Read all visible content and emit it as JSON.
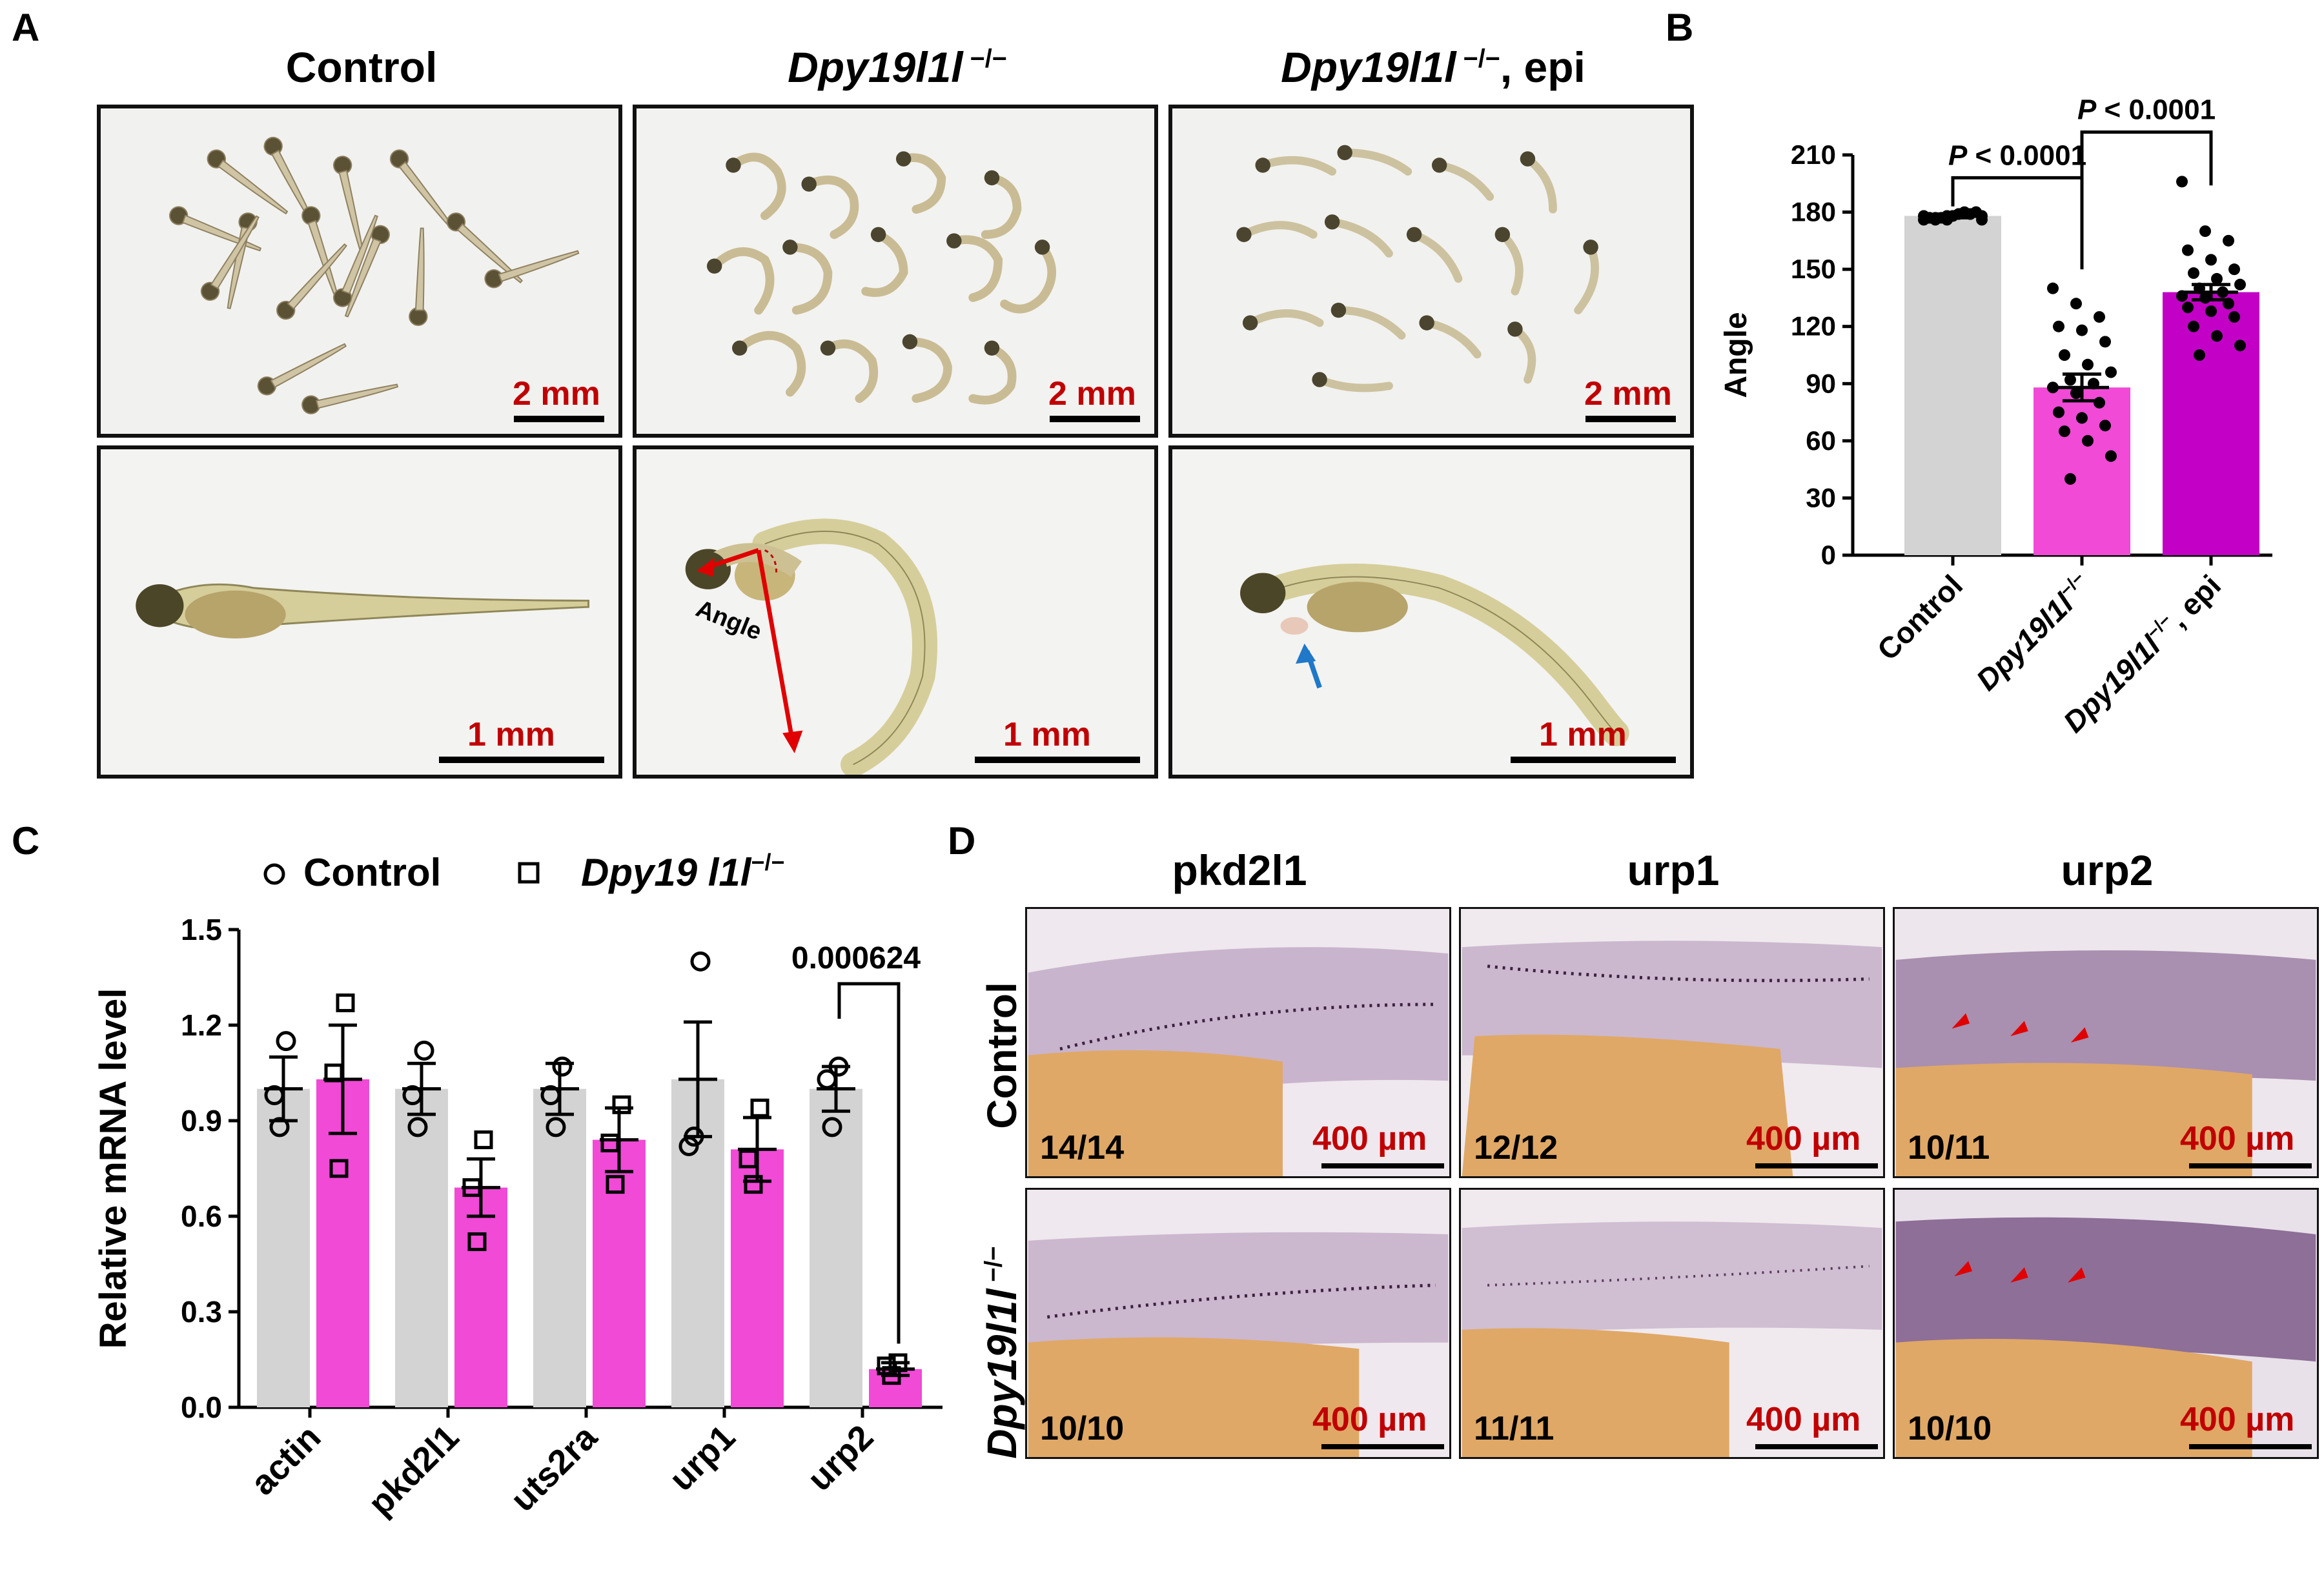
{
  "panel_labels": {
    "a": "A",
    "b": "B",
    "c": "C",
    "d": "D"
  },
  "panelA": {
    "columns": [
      {
        "prefix": "",
        "gene": "",
        "suffix": "Control"
      },
      {
        "prefix": "",
        "gene": "Dpy19l1l",
        "sup": " −/−",
        "suffix": ""
      },
      {
        "prefix": "",
        "gene": "Dpy19l1l",
        "sup": " −/−",
        "suffix": ", epi"
      }
    ],
    "scale_top": "2 mm",
    "scale_bottom": "1 mm",
    "angle_label": "Angle"
  },
  "panelD": {
    "columns": [
      "pkd2l1",
      "urp1",
      "urp2"
    ],
    "rows": [
      {
        "label": "Control"
      },
      {
        "label_gene": "Dpy19l1l",
        "label_sup": " −/−"
      }
    ],
    "counts": [
      [
        "14/14",
        "12/12",
        "10/11"
      ],
      [
        "10/10",
        "11/11",
        "10/10"
      ]
    ],
    "scale": "400 µm"
  },
  "chart_data": [
    {
      "type": "bar",
      "panel": "B",
      "ylabel": "Angle",
      "ylim": [
        0,
        210
      ],
      "yticks": [
        "0",
        "30",
        "60",
        "90",
        "120",
        "150",
        "180",
        "210"
      ],
      "categories": [
        "Control",
        "Dpy19l1l −/−",
        "Dpy19l1l −/−, epi"
      ],
      "category_parts": [
        {
          "gene": "",
          "sup": "",
          "text": "Control"
        },
        {
          "gene": "Dpy19l1l",
          "sup": "−/−",
          "text": ""
        },
        {
          "gene": "Dpy19l1l",
          "sup": "−/−",
          "text": ", epi"
        }
      ],
      "values": [
        178,
        88,
        138
      ],
      "sem": [
        1,
        7,
        4
      ],
      "colors": [
        "#d3d3d3",
        "#f04ad6",
        "#c200c6"
      ],
      "points": [
        [
          176,
          178,
          179,
          177,
          178,
          180,
          176,
          179,
          178,
          177,
          180,
          178,
          176,
          179,
          177,
          178,
          180,
          177,
          179,
          176
        ],
        [
          140,
          132,
          125,
          120,
          118,
          112,
          105,
          100,
          96,
          92,
          90,
          88,
          85,
          80,
          75,
          72,
          68,
          65,
          60,
          52,
          40
        ],
        [
          196,
          170,
          165,
          160,
          155,
          150,
          148,
          145,
          142,
          140,
          138,
          136,
          135,
          132,
          130,
          128,
          125,
          120,
          115,
          110,
          105
        ]
      ],
      "comparisons": [
        {
          "label_p": "P",
          "label_rest": " < 0.0001",
          "from": 0,
          "to": 1
        },
        {
          "label_p": "P",
          "label_rest": " < 0.0001",
          "from": 1,
          "to": 2
        }
      ]
    },
    {
      "type": "bar",
      "panel": "C",
      "ylabel": "Relative mRNA level",
      "ylim": [
        0,
        1.5
      ],
      "yticks": [
        "0.0",
        "0.3",
        "0.6",
        "0.9",
        "1.2",
        "1.5"
      ],
      "categories": [
        "actin",
        "pkd2l1",
        "uts2ra",
        "urp1",
        "urp2"
      ],
      "legend": [
        {
          "marker": "circle",
          "text": "Control"
        },
        {
          "marker": "square",
          "gene": "Dpy19 l1l",
          "sup": "−/−"
        }
      ],
      "series": [
        {
          "name": "Control",
          "values": [
            1.0,
            1.0,
            1.0,
            1.03,
            1.0
          ],
          "sem": [
            0.1,
            0.08,
            0.08,
            0.18,
            0.07
          ],
          "points": [
            [
              1.15,
              0.98,
              0.88
            ],
            [
              1.12,
              0.98,
              0.88
            ],
            [
              1.07,
              0.98,
              0.88
            ],
            [
              1.4,
              0.82,
              0.85
            ],
            [
              1.07,
              1.03,
              0.88
            ]
          ],
          "color": "#d3d3d3"
        },
        {
          "name": "Dpy19 l1l −/−",
          "values": [
            1.03,
            0.69,
            0.84,
            0.81,
            0.12
          ],
          "sem": [
            0.17,
            0.09,
            0.1,
            0.1,
            0.02
          ],
          "points": [
            [
              1.27,
              1.05,
              0.75
            ],
            [
              0.84,
              0.69,
              0.52
            ],
            [
              0.95,
              0.83,
              0.7
            ],
            [
              0.94,
              0.78,
              0.7
            ],
            [
              0.14,
              0.13,
              0.1
            ]
          ],
          "color": "#f04ad6"
        }
      ],
      "annotation": {
        "text": "0.000624",
        "category": 4
      }
    }
  ]
}
